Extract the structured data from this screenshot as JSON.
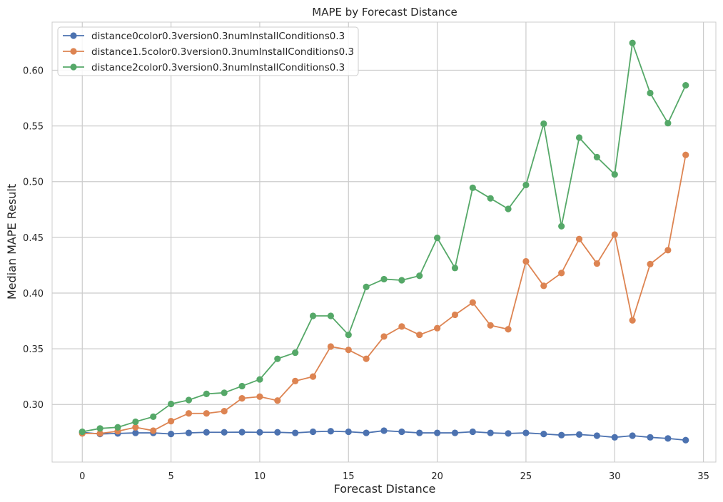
{
  "chart_data": {
    "type": "line",
    "title": "MAPE by Forecast Distance",
    "xlabel": "Forecast Distance",
    "ylabel": "Median MAPE Result",
    "xlim": [
      -1.7,
      35.7
    ],
    "ylim": [
      0.2483,
      0.6432
    ],
    "xticks": [
      0,
      5,
      10,
      15,
      20,
      25,
      30,
      35
    ],
    "yticks": [
      0.3,
      0.35,
      0.4,
      0.45,
      0.5,
      0.55,
      0.6
    ],
    "grid": true,
    "legend_position": "top-left",
    "x": [
      0,
      1,
      2,
      3,
      4,
      5,
      6,
      7,
      8,
      9,
      10,
      11,
      12,
      13,
      14,
      15,
      16,
      17,
      18,
      19,
      20,
      21,
      22,
      23,
      24,
      25,
      26,
      27,
      28,
      29,
      30,
      31,
      32,
      33,
      34
    ],
    "series": [
      {
        "name": "distance0color0.3version0.3numInstallConditions0.3",
        "color": "#4c72b0",
        "values": [
          0.275,
          0.2735,
          0.274,
          0.2745,
          0.2745,
          0.2735,
          0.2745,
          0.275,
          0.275,
          0.2752,
          0.275,
          0.275,
          0.2745,
          0.2755,
          0.276,
          0.2755,
          0.2745,
          0.2765,
          0.2755,
          0.2745,
          0.2745,
          0.2745,
          0.2755,
          0.2745,
          0.274,
          0.2745,
          0.2735,
          0.2725,
          0.273,
          0.272,
          0.2705,
          0.272,
          0.2705,
          0.2695,
          0.268
        ]
      },
      {
        "name": "distance1.5color0.3version0.3numInstallConditions0.3",
        "color": "#dd8452",
        "values": [
          0.274,
          0.274,
          0.276,
          0.2795,
          0.2765,
          0.285,
          0.292,
          0.292,
          0.294,
          0.3055,
          0.307,
          0.3035,
          0.321,
          0.325,
          0.352,
          0.349,
          0.341,
          0.361,
          0.37,
          0.3625,
          0.3685,
          0.3805,
          0.3915,
          0.371,
          0.3675,
          0.4285,
          0.4065,
          0.418,
          0.4485,
          0.4265,
          0.4525,
          0.3755,
          0.426,
          0.4385,
          0.524
        ]
      },
      {
        "name": "distance2color0.3version0.3numInstallConditions0.3",
        "color": "#55a868",
        "values": [
          0.2755,
          0.2785,
          0.2795,
          0.2845,
          0.289,
          0.3005,
          0.304,
          0.3095,
          0.3105,
          0.3165,
          0.3225,
          0.341,
          0.3465,
          0.3795,
          0.3795,
          0.3625,
          0.4055,
          0.4125,
          0.4115,
          0.4155,
          0.4495,
          0.4225,
          0.4945,
          0.485,
          0.4755,
          0.497,
          0.552,
          0.46,
          0.5395,
          0.522,
          0.5065,
          0.6245,
          0.5795,
          0.5525,
          0.5865
        ]
      }
    ]
  }
}
